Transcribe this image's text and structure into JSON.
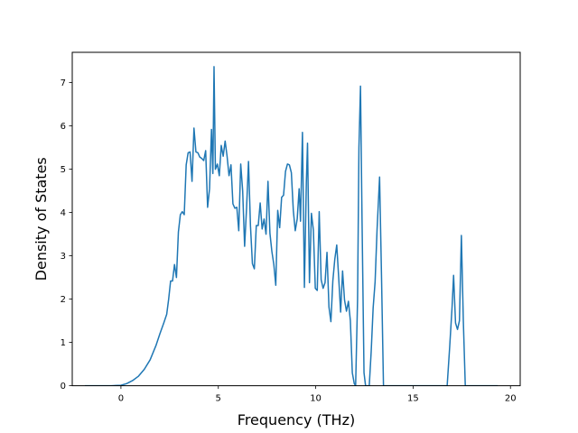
{
  "chart_data": {
    "type": "line",
    "title": "",
    "xlabel": "Frequency (THz)",
    "ylabel": "Density of States",
    "xlim": [
      -2.5,
      20.5
    ],
    "ylim": [
      0,
      7.7
    ],
    "xticks": [
      0,
      5,
      10,
      15,
      20
    ],
    "yticks": [
      0,
      1,
      2,
      3,
      4,
      5,
      6,
      7
    ],
    "grid": false,
    "legend": "none",
    "series": [
      {
        "color": "#1f77b4",
        "points": [
          [
            -1.85,
            0
          ],
          [
            -0.5,
            0
          ],
          [
            0.0,
            0.01
          ],
          [
            0.3,
            0.05
          ],
          [
            0.6,
            0.12
          ],
          [
            0.9,
            0.22
          ],
          [
            1.2,
            0.38
          ],
          [
            1.5,
            0.6
          ],
          [
            1.8,
            0.93
          ],
          [
            2.0,
            1.2
          ],
          [
            2.2,
            1.45
          ],
          [
            2.35,
            1.65
          ],
          [
            2.45,
            2.0
          ],
          [
            2.55,
            2.42
          ],
          [
            2.65,
            2.42
          ],
          [
            2.75,
            2.8
          ],
          [
            2.85,
            2.5
          ],
          [
            2.95,
            3.55
          ],
          [
            3.05,
            3.95
          ],
          [
            3.15,
            4.02
          ],
          [
            3.25,
            3.95
          ],
          [
            3.35,
            5.1
          ],
          [
            3.45,
            5.38
          ],
          [
            3.55,
            5.4
          ],
          [
            3.65,
            4.72
          ],
          [
            3.75,
            5.95
          ],
          [
            3.85,
            5.4
          ],
          [
            3.95,
            5.38
          ],
          [
            4.05,
            5.28
          ],
          [
            4.15,
            5.25
          ],
          [
            4.25,
            5.2
          ],
          [
            4.35,
            5.43
          ],
          [
            4.45,
            4.12
          ],
          [
            4.55,
            4.55
          ],
          [
            4.65,
            5.92
          ],
          [
            4.72,
            4.9
          ],
          [
            4.78,
            7.37
          ],
          [
            4.85,
            5.0
          ],
          [
            4.95,
            5.12
          ],
          [
            5.05,
            4.85
          ],
          [
            5.15,
            5.55
          ],
          [
            5.25,
            5.3
          ],
          [
            5.35,
            5.65
          ],
          [
            5.45,
            5.3
          ],
          [
            5.55,
            4.85
          ],
          [
            5.65,
            5.1
          ],
          [
            5.75,
            4.2
          ],
          [
            5.85,
            4.1
          ],
          [
            5.95,
            4.12
          ],
          [
            6.05,
            3.58
          ],
          [
            6.15,
            5.12
          ],
          [
            6.25,
            4.5
          ],
          [
            6.35,
            3.22
          ],
          [
            6.45,
            4.1
          ],
          [
            6.55,
            5.18
          ],
          [
            6.65,
            3.7
          ],
          [
            6.75,
            2.82
          ],
          [
            6.85,
            2.7
          ],
          [
            6.95,
            3.7
          ],
          [
            7.05,
            3.7
          ],
          [
            7.15,
            4.22
          ],
          [
            7.25,
            3.62
          ],
          [
            7.35,
            3.85
          ],
          [
            7.45,
            3.5
          ],
          [
            7.55,
            4.72
          ],
          [
            7.65,
            3.52
          ],
          [
            7.75,
            3.1
          ],
          [
            7.85,
            2.8
          ],
          [
            7.95,
            2.32
          ],
          [
            8.05,
            4.05
          ],
          [
            8.15,
            3.65
          ],
          [
            8.25,
            4.35
          ],
          [
            8.35,
            4.4
          ],
          [
            8.45,
            4.95
          ],
          [
            8.55,
            5.12
          ],
          [
            8.65,
            5.1
          ],
          [
            8.75,
            4.92
          ],
          [
            8.85,
            4.05
          ],
          [
            8.95,
            3.58
          ],
          [
            9.05,
            3.85
          ],
          [
            9.15,
            4.55
          ],
          [
            9.22,
            3.8
          ],
          [
            9.32,
            5.85
          ],
          [
            9.42,
            2.27
          ],
          [
            9.52,
            4.7
          ],
          [
            9.58,
            5.6
          ],
          [
            9.68,
            2.38
          ],
          [
            9.78,
            3.98
          ],
          [
            9.88,
            3.6
          ],
          [
            9.98,
            2.25
          ],
          [
            10.08,
            2.2
          ],
          [
            10.18,
            4.02
          ],
          [
            10.28,
            2.45
          ],
          [
            10.38,
            2.25
          ],
          [
            10.48,
            2.38
          ],
          [
            10.58,
            3.08
          ],
          [
            10.68,
            1.82
          ],
          [
            10.78,
            1.48
          ],
          [
            10.88,
            2.42
          ],
          [
            10.98,
            2.92
          ],
          [
            11.08,
            3.25
          ],
          [
            11.18,
            2.5
          ],
          [
            11.28,
            1.7
          ],
          [
            11.38,
            2.65
          ],
          [
            11.48,
            1.98
          ],
          [
            11.58,
            1.72
          ],
          [
            11.68,
            1.95
          ],
          [
            11.78,
            1.5
          ],
          [
            11.88,
            0.3
          ],
          [
            11.98,
            0.05
          ],
          [
            12.05,
            0
          ],
          [
            12.15,
            2.0
          ],
          [
            12.22,
            5.5
          ],
          [
            12.3,
            6.92
          ],
          [
            12.38,
            3.8
          ],
          [
            12.48,
            0.3
          ],
          [
            12.56,
            0
          ],
          [
            12.75,
            0
          ],
          [
            12.85,
            0.8
          ],
          [
            12.95,
            1.8
          ],
          [
            13.05,
            2.4
          ],
          [
            13.15,
            3.6
          ],
          [
            13.28,
            4.82
          ],
          [
            13.38,
            2.5
          ],
          [
            13.48,
            0
          ],
          [
            16.75,
            0
          ],
          [
            16.88,
            0.9
          ],
          [
            17.0,
            1.8
          ],
          [
            17.08,
            2.55
          ],
          [
            17.18,
            1.45
          ],
          [
            17.28,
            1.3
          ],
          [
            17.38,
            1.5
          ],
          [
            17.48,
            3.47
          ],
          [
            17.58,
            1.5
          ],
          [
            17.68,
            0
          ],
          [
            19.35,
            0
          ]
        ]
      }
    ]
  }
}
